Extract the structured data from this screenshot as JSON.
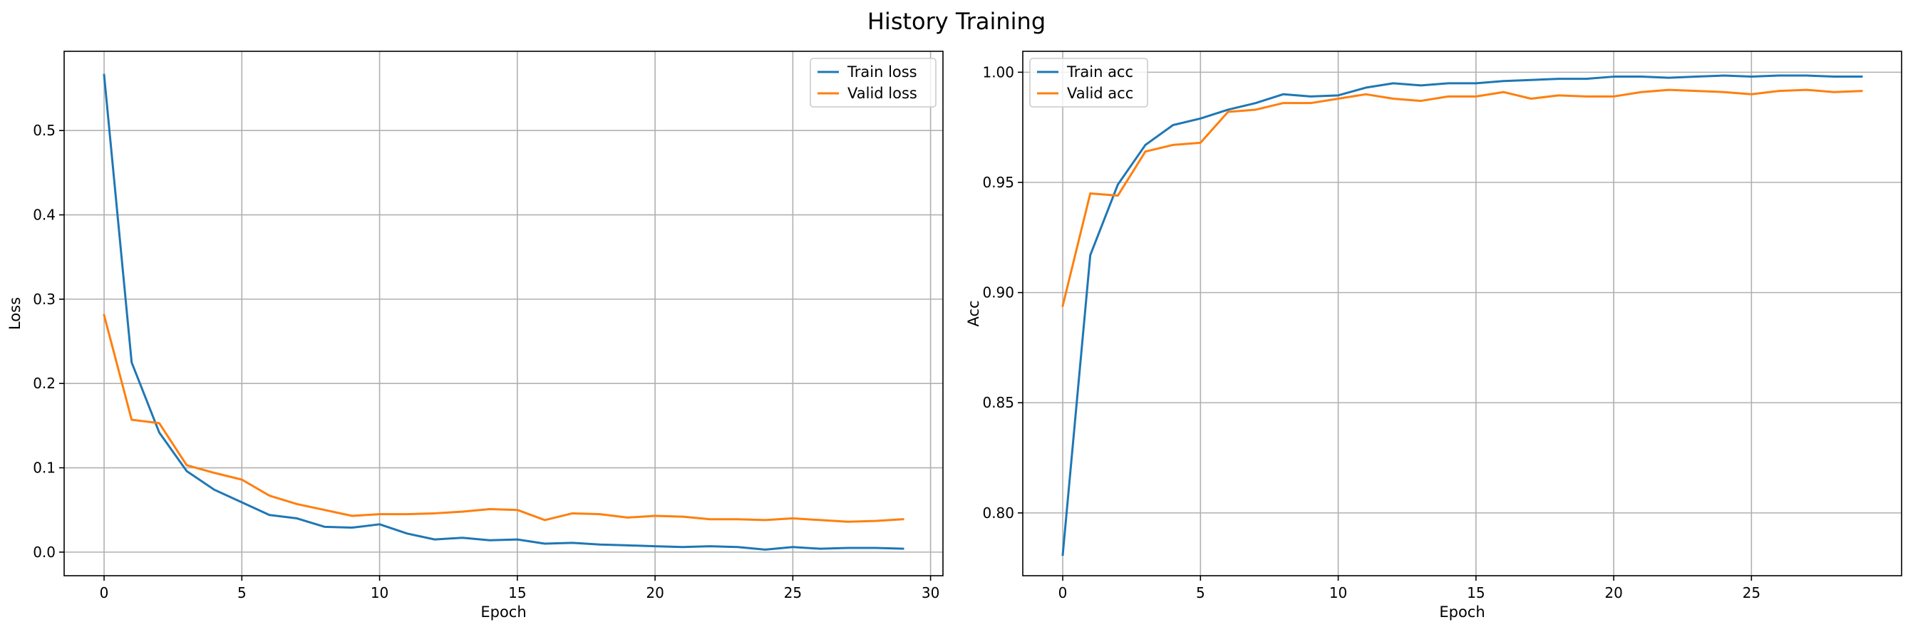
{
  "figure": {
    "title": "History Training"
  },
  "chart_data": [
    {
      "type": "line",
      "title": "",
      "xlabel": "Epoch",
      "ylabel": "Loss",
      "xlim": [
        -1.45,
        30.45
      ],
      "ylim": [
        -0.028,
        0.594
      ],
      "xticks": [
        0,
        5,
        10,
        15,
        20,
        25,
        30
      ],
      "yticks": [
        0.0,
        0.1,
        0.2,
        0.3,
        0.4,
        0.5
      ],
      "ytick_decimals": 1,
      "grid": true,
      "legend_position": "top-right",
      "x": [
        0,
        1,
        2,
        3,
        4,
        5,
        6,
        7,
        8,
        9,
        10,
        11,
        12,
        13,
        14,
        15,
        16,
        17,
        18,
        19,
        20,
        21,
        22,
        23,
        24,
        25,
        26,
        27,
        28,
        29
      ],
      "series": [
        {
          "name": "Train loss",
          "color": "#1f77b4",
          "values": [
            0.566,
            0.225,
            0.142,
            0.096,
            0.074,
            0.059,
            0.044,
            0.04,
            0.03,
            0.029,
            0.033,
            0.022,
            0.015,
            0.017,
            0.014,
            0.015,
            0.01,
            0.011,
            0.009,
            0.008,
            0.007,
            0.006,
            0.007,
            0.006,
            0.003,
            0.006,
            0.004,
            0.005,
            0.005,
            0.004
          ]
        },
        {
          "name": "Valid loss",
          "color": "#ff7f0e",
          "values": [
            0.281,
            0.157,
            0.153,
            0.103,
            0.094,
            0.086,
            0.067,
            0.057,
            0.05,
            0.043,
            0.045,
            0.045,
            0.046,
            0.048,
            0.051,
            0.05,
            0.038,
            0.046,
            0.045,
            0.041,
            0.043,
            0.042,
            0.039,
            0.039,
            0.038,
            0.04,
            0.038,
            0.036,
            0.037,
            0.039
          ]
        }
      ]
    },
    {
      "type": "line",
      "title": "",
      "xlabel": "Epoch",
      "ylabel": "Acc",
      "xlim": [
        -1.45,
        30.45
      ],
      "ylim": [
        0.7715,
        1.0095
      ],
      "xticks": [
        0,
        5,
        10,
        15,
        20,
        25
      ],
      "yticks": [
        0.8,
        0.85,
        0.9,
        0.95,
        1.0
      ],
      "ytick_decimals": 2,
      "grid": true,
      "legend_position": "top-left",
      "x": [
        0,
        1,
        2,
        3,
        4,
        5,
        6,
        7,
        8,
        9,
        10,
        11,
        12,
        13,
        14,
        15,
        16,
        17,
        18,
        19,
        20,
        21,
        22,
        23,
        24,
        25,
        26,
        27,
        28,
        29
      ],
      "series": [
        {
          "name": "Train acc",
          "color": "#1f77b4",
          "values": [
            0.781,
            0.917,
            0.949,
            0.967,
            0.976,
            0.979,
            0.983,
            0.986,
            0.99,
            0.989,
            0.9895,
            0.993,
            0.995,
            0.994,
            0.995,
            0.995,
            0.996,
            0.9965,
            0.997,
            0.997,
            0.998,
            0.998,
            0.9975,
            0.998,
            0.9985,
            0.998,
            0.9985,
            0.9985,
            0.998,
            0.998
          ]
        },
        {
          "name": "Valid acc",
          "color": "#ff7f0e",
          "values": [
            0.894,
            0.945,
            0.944,
            0.964,
            0.967,
            0.968,
            0.982,
            0.983,
            0.986,
            0.986,
            0.988,
            0.99,
            0.988,
            0.987,
            0.989,
            0.989,
            0.991,
            0.988,
            0.9895,
            0.989,
            0.989,
            0.991,
            0.992,
            0.9915,
            0.991,
            0.99,
            0.9915,
            0.992,
            0.991,
            0.9915
          ]
        }
      ]
    }
  ]
}
